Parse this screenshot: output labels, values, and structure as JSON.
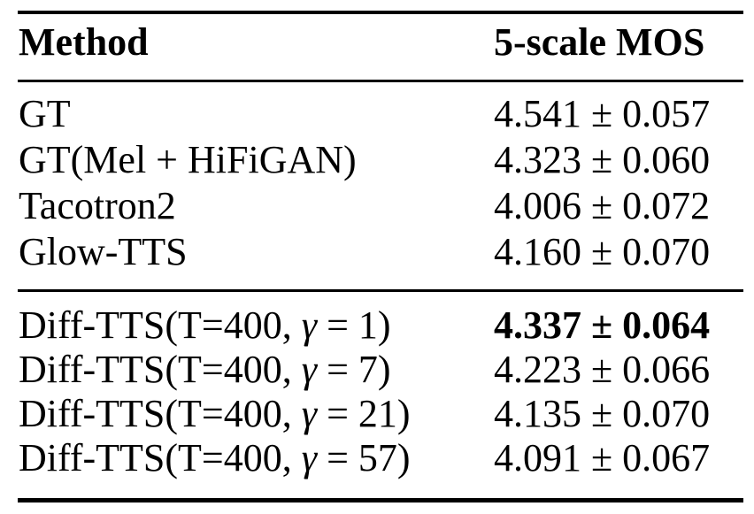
{
  "table": {
    "header": {
      "method": "Method",
      "mos": "5-scale MOS"
    },
    "sections": [
      {
        "rows": [
          {
            "method": "GT",
            "mos": "4.541 ± 0.057"
          },
          {
            "method": "GT(Mel + HiFiGAN)",
            "mos": "4.323 ± 0.060"
          },
          {
            "method": "Tacotron2",
            "mos": "4.006 ± 0.072"
          },
          {
            "method": "Glow-TTS",
            "mos": "4.160 ± 0.070"
          }
        ]
      },
      {
        "rows": [
          {
            "method_pre": "Diff-TTS(T=400, ",
            "gamma": "γ",
            "method_post": " = 1)",
            "mos": "4.337 ± 0.064",
            "bold": true
          },
          {
            "method_pre": "Diff-TTS(T=400, ",
            "gamma": "γ",
            "method_post": " = 7)",
            "mos": "4.223 ± 0.066",
            "bold": false
          },
          {
            "method_pre": "Diff-TTS(T=400, ",
            "gamma": "γ",
            "method_post": " = 21)",
            "mos": "4.135 ± 0.070",
            "bold": false
          },
          {
            "method_pre": "Diff-TTS(T=400, ",
            "gamma": "γ",
            "method_post": " = 57)",
            "mos": "4.091 ± 0.067",
            "bold": false
          }
        ]
      }
    ]
  }
}
